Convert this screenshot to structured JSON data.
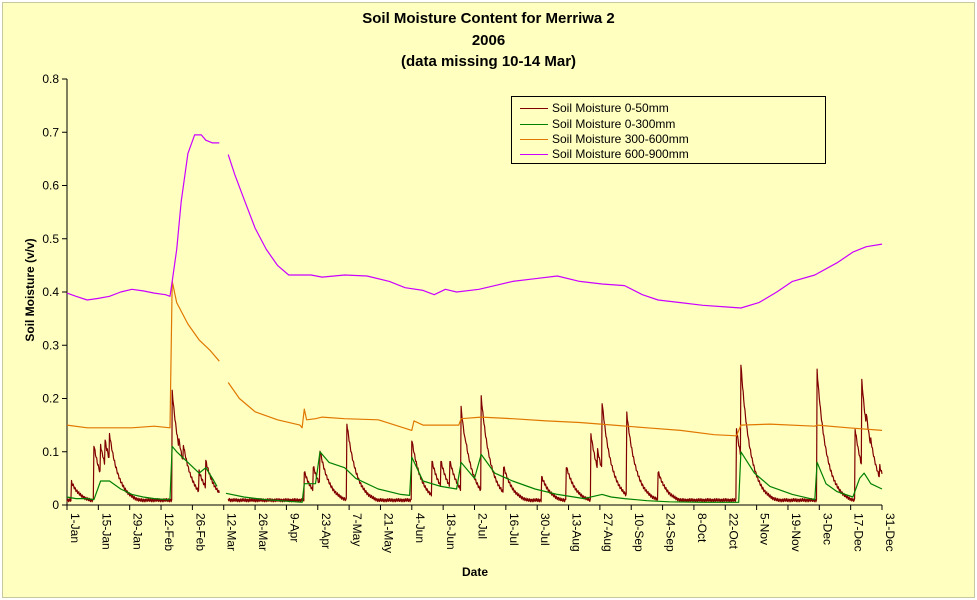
{
  "chart_data": {
    "type": "line",
    "title": "Soil Moisture Content for Merriwa 2",
    "subtitle": "2006",
    "note": "(data  missing 10-14 Mar)",
    "xlabel": "Date",
    "ylabel": "Soil Moisture (v/v)",
    "ylim": [
      0,
      0.8
    ],
    "yticks": [
      "0",
      "0.1",
      "0.2",
      "0.3",
      "0.4",
      "0.5",
      "0.6",
      "0.7",
      "0.8"
    ],
    "xticks": [
      "1-Jan",
      "15-Jan",
      "29-Jan",
      "12-Feb",
      "26-Feb",
      "12-Mar",
      "26-Mar",
      "9-Apr",
      "23-Apr",
      "7-May",
      "21-May",
      "4-Jun",
      "18-Jun",
      "2-Jul",
      "16-Jul",
      "30-Jul",
      "13-Aug",
      "27-Aug",
      "10-Sep",
      "24-Sep",
      "8-Oct",
      "22-Oct",
      "5-Nov",
      "19-Nov",
      "3-Dec",
      "17-Dec",
      "31-Dec"
    ],
    "xlim_day": [
      1,
      365
    ],
    "grid": false,
    "legend_position": "top-right",
    "series": [
      {
        "name": "Soil Moisture 0-50mm",
        "color": "#800000",
        "baseline": [
          [
            1,
            0.008
          ],
          [
            45,
            0.008
          ],
          [
            68,
            0.005
          ],
          [
            69,
            0.006
          ],
          [
            365,
            0.005
          ]
        ],
        "spikes": [
          [
            3,
            0.04
          ],
          [
            13,
            0.11
          ],
          [
            16,
            0.11
          ],
          [
            17,
            0.09
          ],
          [
            18,
            0.12
          ],
          [
            19,
            0.1
          ],
          [
            20,
            0.13
          ],
          [
            22,
            0.08
          ],
          [
            48,
            0.21
          ],
          [
            49,
            0.14
          ],
          [
            51,
            0.12
          ],
          [
            53,
            0.11
          ],
          [
            60,
            0.06
          ],
          [
            63,
            0.08
          ],
          [
            107,
            0.06
          ],
          [
            111,
            0.07
          ],
          [
            114,
            0.1
          ],
          [
            126,
            0.15
          ],
          [
            155,
            0.12
          ],
          [
            164,
            0.08
          ],
          [
            168,
            0.08
          ],
          [
            172,
            0.08
          ],
          [
            177,
            0.18
          ],
          [
            179,
            0.12
          ],
          [
            186,
            0.2
          ],
          [
            188,
            0.12
          ],
          [
            196,
            0.07
          ],
          [
            213,
            0.05
          ],
          [
            224,
            0.07
          ],
          [
            235,
            0.13
          ],
          [
            238,
            0.1
          ],
          [
            240,
            0.19
          ],
          [
            242,
            0.12
          ],
          [
            245,
            0.05
          ],
          [
            251,
            0.17
          ],
          [
            265,
            0.06
          ],
          [
            300,
            0.14
          ],
          [
            302,
            0.26
          ],
          [
            304,
            0.16
          ],
          [
            336,
            0.25
          ],
          [
            353,
            0.14
          ],
          [
            356,
            0.23
          ],
          [
            358,
            0.17
          ],
          [
            360,
            0.12
          ],
          [
            364,
            0.07
          ]
        ],
        "decay_days": 7
      },
      {
        "name": "Soil Moisture 0-300mm",
        "color": "#008000",
        "points": [
          [
            1,
            0.015
          ],
          [
            5,
            0.012
          ],
          [
            10,
            0.012
          ],
          [
            13,
            0.01
          ],
          [
            16,
            0.045
          ],
          [
            20,
            0.045
          ],
          [
            25,
            0.03
          ],
          [
            30,
            0.02
          ],
          [
            35,
            0.015
          ],
          [
            40,
            0.012
          ],
          [
            46,
            0.01
          ],
          [
            47,
            0.012
          ],
          [
            48,
            0.11
          ],
          [
            50,
            0.1
          ],
          [
            55,
            0.08
          ],
          [
            60,
            0.06
          ],
          [
            63,
            0.07
          ],
          [
            66,
            0.05
          ],
          [
            68,
            0.035
          ],
          [
            null,
            null
          ],
          [
            72,
            0.022
          ],
          [
            80,
            0.015
          ],
          [
            90,
            0.01
          ],
          [
            106,
            0.005
          ],
          [
            107,
            0.04
          ],
          [
            112,
            0.04
          ],
          [
            114,
            0.1
          ],
          [
            118,
            0.08
          ],
          [
            125,
            0.07
          ],
          [
            130,
            0.05
          ],
          [
            140,
            0.03
          ],
          [
            150,
            0.02
          ],
          [
            154,
            0.018
          ],
          [
            155,
            0.09
          ],
          [
            160,
            0.045
          ],
          [
            168,
            0.035
          ],
          [
            175,
            0.03
          ],
          [
            177,
            0.08
          ],
          [
            183,
            0.05
          ],
          [
            186,
            0.095
          ],
          [
            192,
            0.06
          ],
          [
            200,
            0.045
          ],
          [
            210,
            0.03
          ],
          [
            220,
            0.02
          ],
          [
            232,
            0.012
          ],
          [
            238,
            0.018
          ],
          [
            240,
            0.02
          ],
          [
            244,
            0.015
          ],
          [
            250,
            0.012
          ],
          [
            260,
            0.008
          ],
          [
            270,
            0.006
          ],
          [
            285,
            0.005
          ],
          [
            301,
            0.005
          ],
          [
            302,
            0.1
          ],
          [
            308,
            0.06
          ],
          [
            315,
            0.035
          ],
          [
            325,
            0.02
          ],
          [
            335,
            0.01
          ],
          [
            336,
            0.08
          ],
          [
            340,
            0.04
          ],
          [
            345,
            0.025
          ],
          [
            352,
            0.015
          ],
          [
            355,
            0.05
          ],
          [
            357,
            0.06
          ],
          [
            360,
            0.04
          ],
          [
            365,
            0.03
          ]
        ]
      },
      {
        "name": "Soil Moisture 300-600mm",
        "color": "#E07800",
        "points": [
          [
            1,
            0.15
          ],
          [
            10,
            0.145
          ],
          [
            20,
            0.145
          ],
          [
            30,
            0.145
          ],
          [
            40,
            0.148
          ],
          [
            47,
            0.145
          ],
          [
            48,
            0.42
          ],
          [
            50,
            0.38
          ],
          [
            55,
            0.34
          ],
          [
            60,
            0.31
          ],
          [
            65,
            0.29
          ],
          [
            69,
            0.27
          ],
          [
            null,
            null
          ],
          [
            73,
            0.23
          ],
          [
            78,
            0.2
          ],
          [
            85,
            0.175
          ],
          [
            95,
            0.16
          ],
          [
            105,
            0.15
          ],
          [
            106,
            0.145
          ],
          [
            107,
            0.18
          ],
          [
            108,
            0.16
          ],
          [
            112,
            0.162
          ],
          [
            115,
            0.165
          ],
          [
            125,
            0.162
          ],
          [
            140,
            0.16
          ],
          [
            155,
            0.14
          ],
          [
            156,
            0.158
          ],
          [
            160,
            0.15
          ],
          [
            170,
            0.15
          ],
          [
            176,
            0.15
          ],
          [
            177,
            0.162
          ],
          [
            186,
            0.165
          ],
          [
            200,
            0.162
          ],
          [
            215,
            0.158
          ],
          [
            230,
            0.155
          ],
          [
            245,
            0.15
          ],
          [
            260,
            0.145
          ],
          [
            275,
            0.14
          ],
          [
            290,
            0.132
          ],
          [
            300,
            0.13
          ],
          [
            302,
            0.15
          ],
          [
            315,
            0.152
          ],
          [
            335,
            0.148
          ],
          [
            336,
            0.15
          ],
          [
            350,
            0.145
          ],
          [
            365,
            0.14
          ]
        ]
      },
      {
        "name": "Soil Moisture 600-900mm",
        "color": "#CC00FF",
        "points": [
          [
            1,
            0.398
          ],
          [
            5,
            0.392
          ],
          [
            10,
            0.385
          ],
          [
            15,
            0.388
          ],
          [
            20,
            0.392
          ],
          [
            25,
            0.4
          ],
          [
            30,
            0.405
          ],
          [
            35,
            0.402
          ],
          [
            40,
            0.398
          ],
          [
            45,
            0.395
          ],
          [
            47,
            0.392
          ],
          [
            48,
            0.42
          ],
          [
            50,
            0.48
          ],
          [
            52,
            0.57
          ],
          [
            55,
            0.66
          ],
          [
            58,
            0.695
          ],
          [
            61,
            0.695
          ],
          [
            63,
            0.685
          ],
          [
            66,
            0.68
          ],
          [
            69,
            0.68
          ],
          [
            null,
            null
          ],
          [
            73,
            0.658
          ],
          [
            76,
            0.62
          ],
          [
            80,
            0.575
          ],
          [
            85,
            0.52
          ],
          [
            90,
            0.48
          ],
          [
            95,
            0.45
          ],
          [
            100,
            0.432
          ],
          [
            110,
            0.432
          ],
          [
            115,
            0.428
          ],
          [
            125,
            0.432
          ],
          [
            135,
            0.43
          ],
          [
            145,
            0.42
          ],
          [
            152,
            0.408
          ],
          [
            160,
            0.403
          ],
          [
            165,
            0.395
          ],
          [
            170,
            0.405
          ],
          [
            175,
            0.4
          ],
          [
            185,
            0.405
          ],
          [
            190,
            0.41
          ],
          [
            200,
            0.42
          ],
          [
            210,
            0.425
          ],
          [
            220,
            0.43
          ],
          [
            230,
            0.42
          ],
          [
            240,
            0.415
          ],
          [
            250,
            0.412
          ],
          [
            258,
            0.395
          ],
          [
            265,
            0.385
          ],
          [
            275,
            0.38
          ],
          [
            285,
            0.375
          ],
          [
            295,
            0.372
          ],
          [
            302,
            0.37
          ],
          [
            310,
            0.38
          ],
          [
            318,
            0.4
          ],
          [
            325,
            0.42
          ],
          [
            335,
            0.432
          ],
          [
            345,
            0.455
          ],
          [
            352,
            0.475
          ],
          [
            358,
            0.485
          ],
          [
            365,
            0.49
          ]
        ]
      }
    ]
  }
}
